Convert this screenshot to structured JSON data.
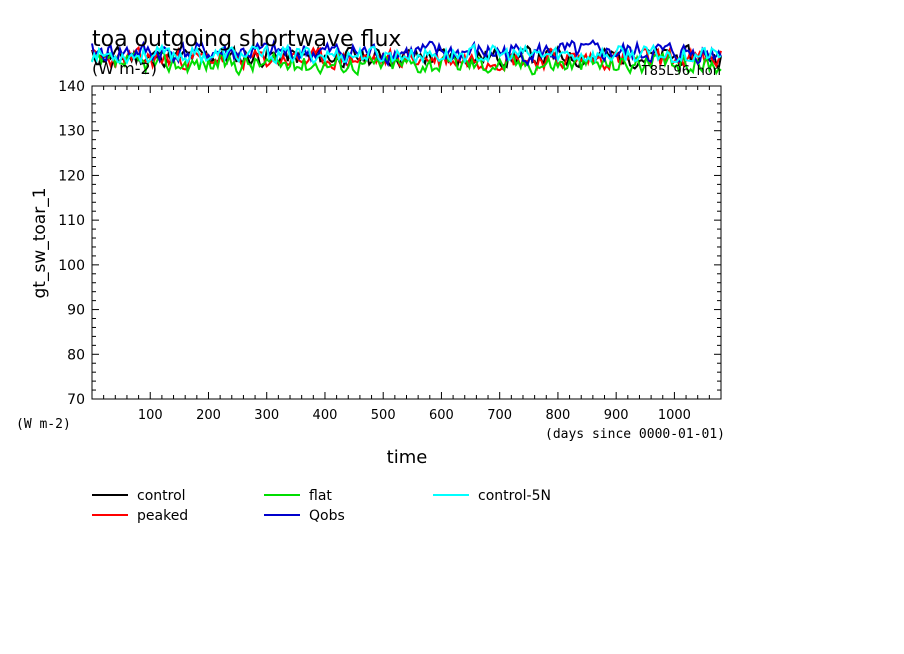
{
  "chart_data": {
    "type": "line",
    "title": "toa outgoing shortwave flux",
    "title_units": "(W m-2)",
    "corner_label": "T85L96_hon",
    "ylabel": "gt_sw_toar_1",
    "yunits": "(W m-2)",
    "xlabel": "time",
    "xunits": "(days since 0000-01-01)",
    "xlim": [
      0,
      1080
    ],
    "ylim": [
      70,
      140
    ],
    "x_ticks": [
      100,
      200,
      300,
      400,
      500,
      600,
      700,
      800,
      900,
      1000
    ],
    "y_ticks": [
      70,
      80,
      90,
      100,
      110,
      120,
      130,
      140
    ],
    "grid": false,
    "legend_position": "bottom",
    "series": [
      {
        "name": "control",
        "color": "#000000",
        "mean": 146.5,
        "amp": 3.0,
        "seed": 11
      },
      {
        "name": "peaked",
        "color": "#ff0000",
        "mean": 146.0,
        "amp": 3.0,
        "seed": 23
      },
      {
        "name": "flat",
        "color": "#00dd00",
        "mean": 145.0,
        "amp": 3.0,
        "seed": 37
      },
      {
        "name": "Qobs",
        "color": "#0000cc",
        "mean": 147.5,
        "amp": 3.2,
        "seed": 41
      },
      {
        "name": "control-5N",
        "color": "#00ffff",
        "mean": 147.0,
        "amp": 2.6,
        "seed": 53
      }
    ]
  }
}
